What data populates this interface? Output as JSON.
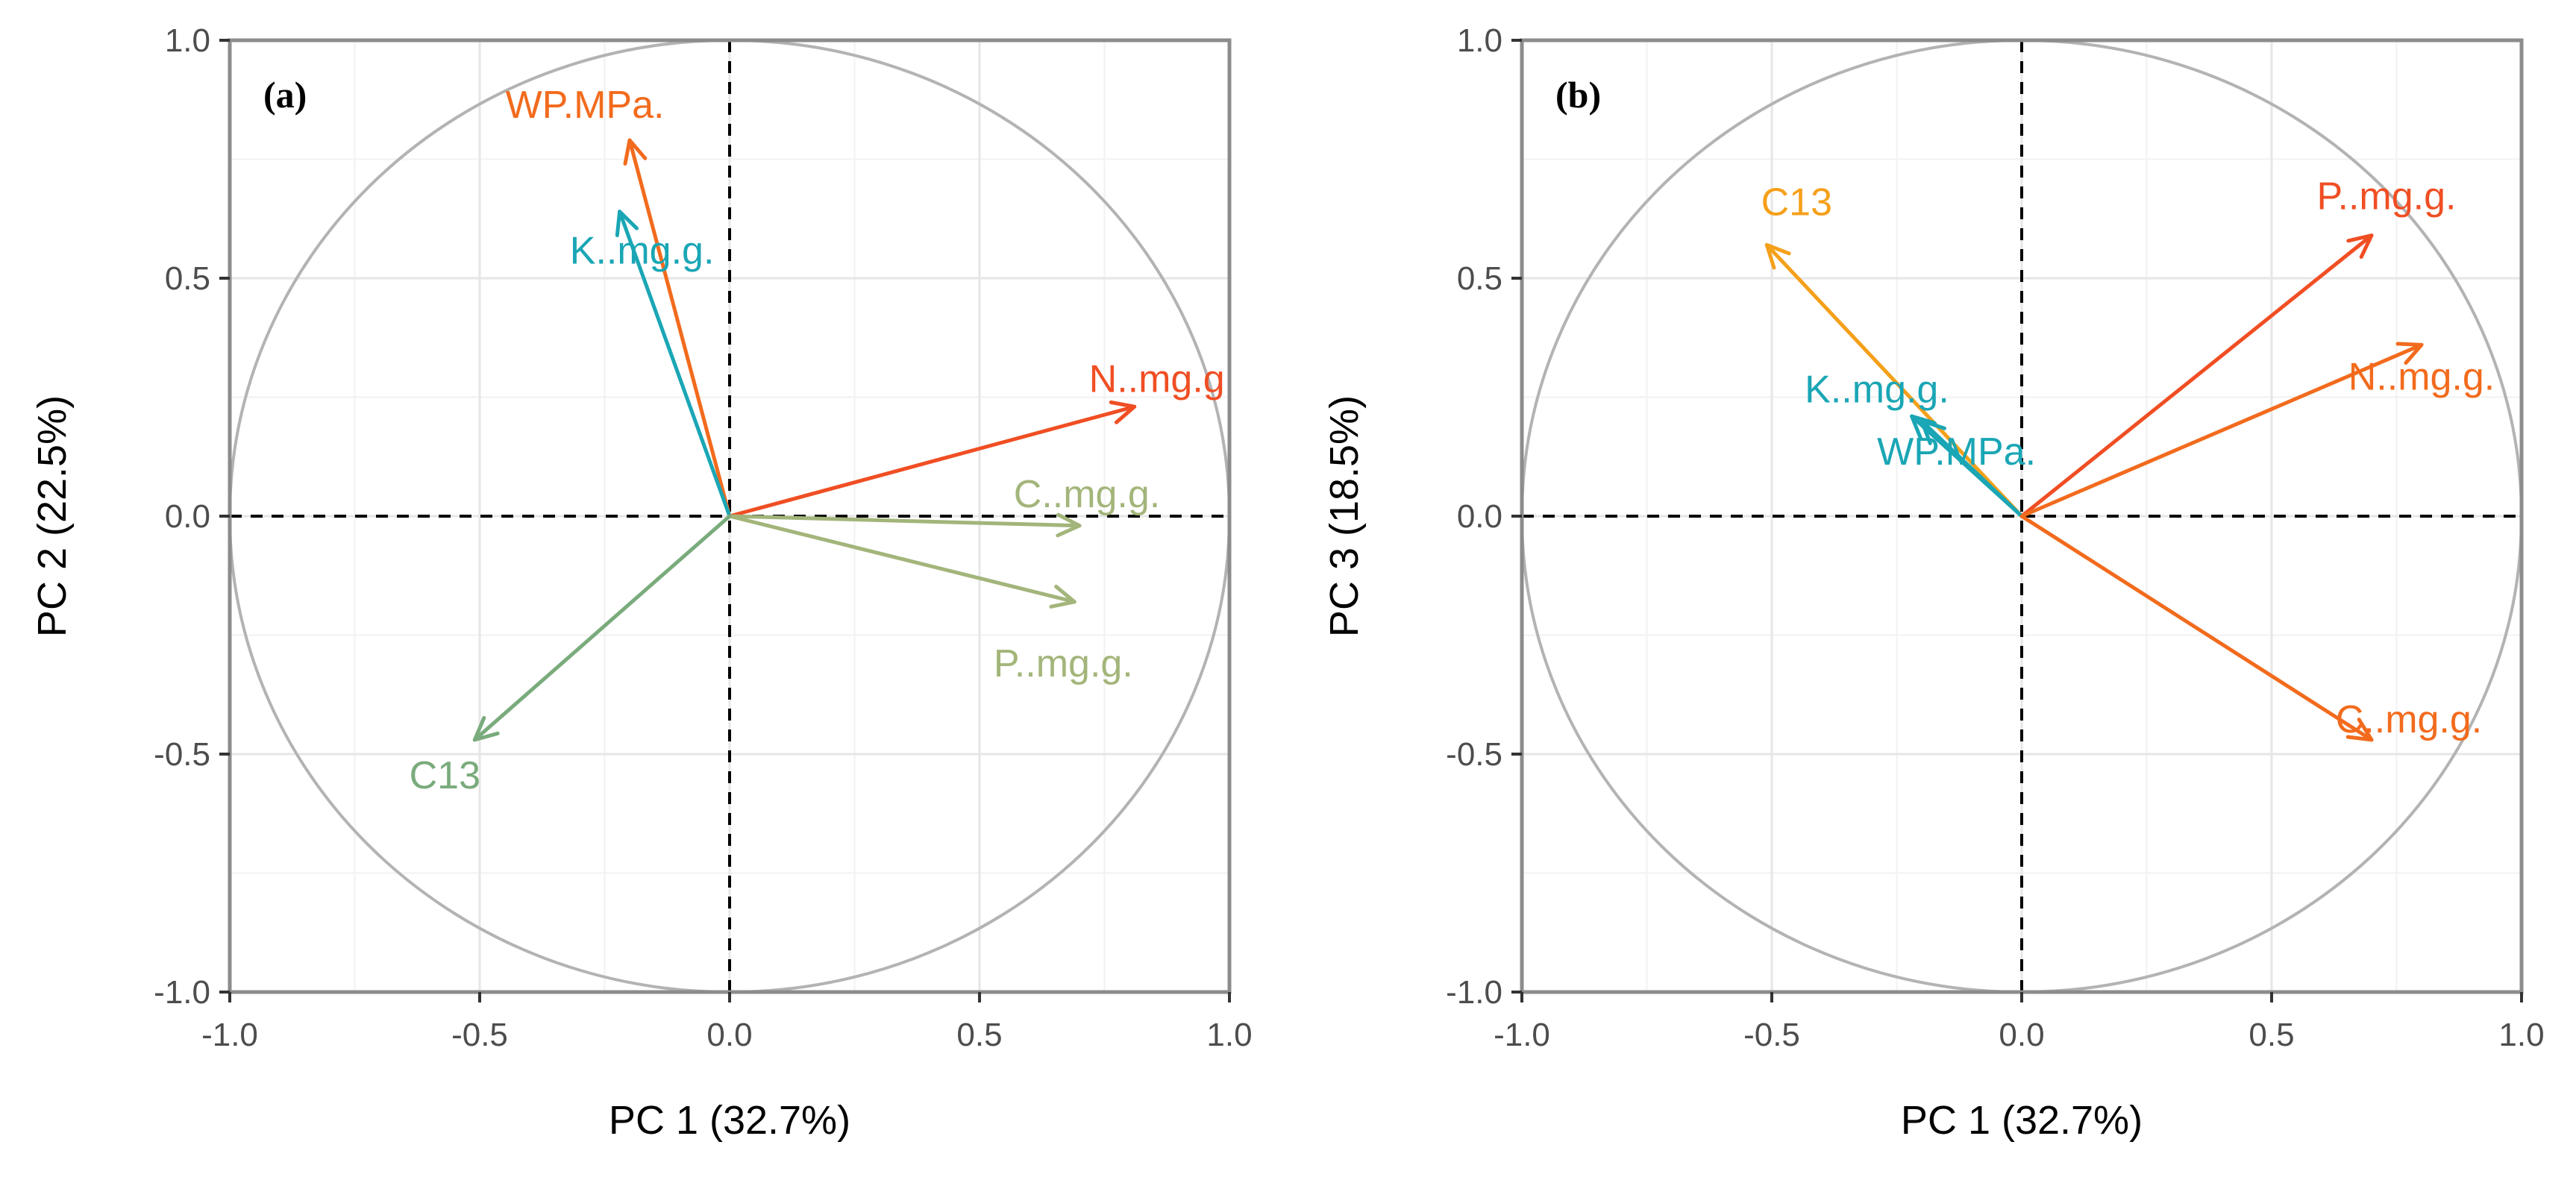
{
  "chart_data": [
    {
      "type": "scatter",
      "subtype": "pca-correlation-circle",
      "panel_label": "(a)",
      "xlabel": "PC 1 (32.7%)",
      "ylabel": "PC 2 (22.5%)",
      "xlim": [
        -1.0,
        1.0
      ],
      "ylim": [
        -1.0,
        1.0
      ],
      "xticks": [
        "-1.0",
        "-0.5",
        "0.0",
        "0.5",
        "1.0"
      ],
      "yticks": [
        "-1.0",
        "-0.5",
        "0.0",
        "0.5",
        "1.0"
      ],
      "grid": true,
      "unit_circle": true,
      "series": [
        {
          "name": "WP.MPa.",
          "x": -0.2,
          "y": 0.79,
          "color": "#f26b1d"
        },
        {
          "name": "K..mg.g.",
          "x": -0.22,
          "y": 0.64,
          "color": "#1aa6b5"
        },
        {
          "name": "N..mg.g",
          "x": 0.81,
          "y": 0.23,
          "color": "#f04e23"
        },
        {
          "name": "C..mg.g.",
          "x": 0.7,
          "y": -0.02,
          "color": "#a3b57a"
        },
        {
          "name": "P..mg.g.",
          "x": 0.69,
          "y": -0.18,
          "color": "#a3b57a"
        },
        {
          "name": "C13",
          "x": -0.51,
          "y": -0.47,
          "color": "#7aab7c"
        }
      ]
    },
    {
      "type": "scatter",
      "subtype": "pca-correlation-circle",
      "panel_label": "(b)",
      "xlabel": "PC 1 (32.7%)",
      "ylabel": "PC 3 (18.5%)",
      "xlim": [
        -1.0,
        1.0
      ],
      "ylim": [
        -1.0,
        1.0
      ],
      "xticks": [
        "-1.0",
        "-0.5",
        "0.0",
        "0.5",
        "1.0"
      ],
      "yticks": [
        "-1.0",
        "-0.5",
        "0.0",
        "0.5",
        "1.0"
      ],
      "grid": true,
      "unit_circle": true,
      "series": [
        {
          "name": "C13",
          "x": -0.51,
          "y": 0.57,
          "color": "#f5a01a"
        },
        {
          "name": "P..mg.g.",
          "x": 0.7,
          "y": 0.59,
          "color": "#f04e23"
        },
        {
          "name": "N..mg.g.",
          "x": 0.8,
          "y": 0.36,
          "color": "#f26b1d"
        },
        {
          "name": "K..mg.g.",
          "x": -0.2,
          "y": 0.2,
          "color": "#1aa6b5"
        },
        {
          "name": "WP.MPa.",
          "x": -0.22,
          "y": 0.21,
          "color": "#1aa6b5"
        },
        {
          "name": "C..mg.g.",
          "x": 0.7,
          "y": -0.47,
          "color": "#f26b1d"
        }
      ]
    }
  ]
}
